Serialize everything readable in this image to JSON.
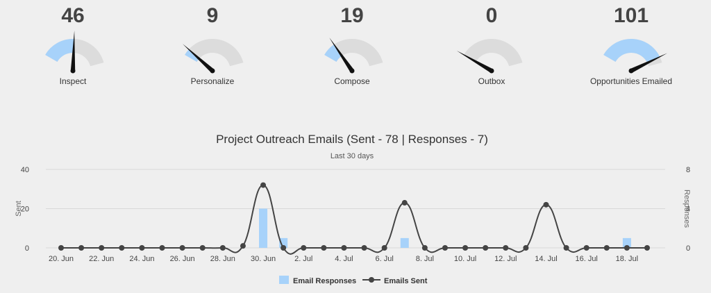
{
  "gauges": [
    {
      "label": "Inspect",
      "value": 46,
      "max": 100
    },
    {
      "label": "Personalize",
      "value": 9,
      "max": 100
    },
    {
      "label": "Compose",
      "value": 19,
      "max": 100
    },
    {
      "label": "Outbox",
      "value": 0,
      "max": 100
    },
    {
      "label": "Opportunities Emailed",
      "value": 101,
      "max": 110
    }
  ],
  "colors": {
    "background": "#efefef",
    "gauge_track": "#dcdcdc",
    "gauge_fill": "#a7d2fa",
    "needle": "#111111",
    "bar": "#a7d2fa",
    "line": "#444444",
    "grid": "#d9d9d9"
  },
  "chart_data": {
    "type": "bar+line",
    "title": "Project Outreach Emails (Sent - 78 | Responses - 7)",
    "subtitle": "Last 30 days",
    "y_left_label": "Sent",
    "y_right_label": "Responses",
    "y_left_range": [
      0,
      40
    ],
    "y_right_range": [
      0,
      8
    ],
    "y_left_ticks": [
      "0",
      "20",
      "40"
    ],
    "y_right_ticks": [
      "0",
      "4",
      "8"
    ],
    "x_tick_labels": [
      "20. Jun",
      "22. Jun",
      "24. Jun",
      "26. Jun",
      "28. Jun",
      "30. Jun",
      "2. Jul",
      "4. Jul",
      "6. Jul",
      "8. Jul",
      "10. Jul",
      "12. Jul",
      "14. Jul",
      "16. Jul",
      "18. Jul"
    ],
    "dates": [
      "20. Jun",
      "21. Jun",
      "22. Jun",
      "23. Jun",
      "24. Jun",
      "25. Jun",
      "26. Jun",
      "27. Jun",
      "28. Jun",
      "29. Jun",
      "30. Jun",
      "1. Jul",
      "2. Jul",
      "3. Jul",
      "4. Jul",
      "5. Jul",
      "6. Jul",
      "7. Jul",
      "8. Jul",
      "9. Jul",
      "10. Jul",
      "11. Jul",
      "12. Jul",
      "13. Jul",
      "14. Jul",
      "15. Jul",
      "16. Jul",
      "17. Jul",
      "18. Jul",
      "19. Jul"
    ],
    "grid": true,
    "legend_position": "bottom",
    "series": [
      {
        "name": "Email Responses",
        "type": "bar",
        "axis": "right",
        "values": [
          0,
          0,
          0,
          0,
          0,
          0,
          0,
          0,
          0,
          0,
          4,
          1,
          0,
          0,
          0,
          0,
          0,
          1,
          0,
          0,
          0,
          0,
          0,
          0,
          0,
          0,
          0,
          0,
          1,
          0
        ]
      },
      {
        "name": "Emails Sent",
        "type": "line",
        "axis": "left",
        "values": [
          0,
          0,
          0,
          0,
          0,
          0,
          0,
          0,
          0,
          1,
          32,
          0,
          0,
          0,
          0,
          0,
          0,
          23,
          0,
          0,
          0,
          0,
          0,
          0,
          22,
          0,
          0,
          0,
          0,
          0
        ]
      }
    ]
  }
}
